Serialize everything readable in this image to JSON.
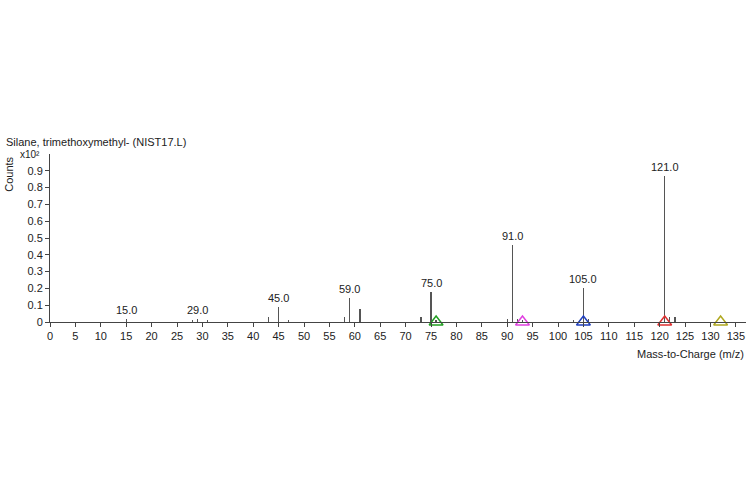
{
  "chart_data": {
    "type": "bar",
    "title": "Silane, trimethoxymethyl- (NIST17.L)",
    "x_label": "Mass-to-Charge (m/z)",
    "y_label": "Counts",
    "y_multiplier": "x10²",
    "x": [
      15,
      28,
      29,
      31,
      43,
      45,
      47,
      58,
      59,
      61,
      73,
      75,
      76,
      90,
      91,
      92,
      93,
      103,
      105,
      106,
      121,
      122,
      123
    ],
    "values": [
      0.02,
      0.01,
      0.02,
      0.01,
      0.03,
      0.09,
      0.01,
      0.03,
      0.14,
      0.08,
      0.03,
      0.18,
      0.01,
      0.02,
      0.46,
      0.02,
      0.01,
      0.01,
      0.2,
      0.02,
      0.87,
      0.03,
      0.03
    ],
    "color": "#555555",
    "annotations": [
      {
        "x": 15,
        "text": "15.0"
      },
      {
        "x": 29,
        "text": "29.0"
      },
      {
        "x": 45,
        "text": "45.0"
      },
      {
        "x": 59,
        "text": "59.0"
      },
      {
        "x": 75,
        "text": "75.0"
      },
      {
        "x": 91,
        "text": "91.0"
      },
      {
        "x": 105,
        "text": "105.0"
      },
      {
        "x": 121,
        "text": "121.0"
      }
    ],
    "triangles": {
      "x": [
        76,
        93,
        105,
        121,
        132
      ],
      "colors": [
        "#22a022",
        "#e040e0",
        "#2040c0",
        "#e03030",
        "#b0a820"
      ]
    },
    "xlim": [
      0,
      137
    ],
    "xticks": [
      0,
      5,
      10,
      15,
      20,
      25,
      30,
      35,
      40,
      45,
      50,
      55,
      60,
      65,
      70,
      75,
      80,
      85,
      90,
      95,
      100,
      105,
      110,
      115,
      120,
      125,
      130,
      135
    ],
    "ylim": [
      0,
      1.0
    ],
    "yticks": [
      0,
      0.1,
      0.2,
      0.3,
      0.4,
      0.5,
      0.6,
      0.7,
      0.8,
      0.9
    ],
    "grid": false
  }
}
